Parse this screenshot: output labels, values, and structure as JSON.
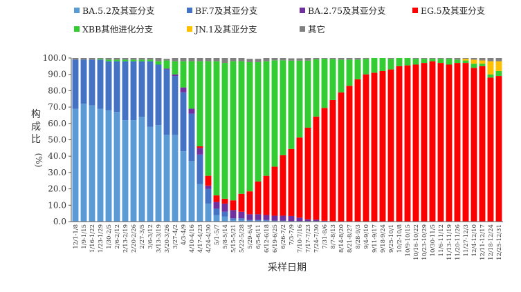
{
  "chart_data": {
    "type": "bar",
    "stacked": true,
    "xlabel": "采样日期",
    "ylabel_chars": [
      "构",
      "成",
      "比"
    ],
    "ylabel_unit": "(%)",
    "ylim": [
      0,
      100
    ],
    "yticks": [
      "0.0",
      "10.0",
      "20.0",
      "30.0",
      "40.0",
      "50.0",
      "60.0",
      "70.0",
      "80.0",
      "90.0",
      "100.0"
    ],
    "legend_placement": "top",
    "grid": false,
    "categories": [
      "12/1-1/8",
      "1/9-1/15",
      "1/16-1/22",
      "1/23-1/29",
      "1/30-2/5",
      "2/6-2/12",
      "2/13-2/19",
      "2/20-2/26",
      "2/27-3/5",
      "3/6-3/12",
      "3/13-3/19",
      "3/20-3/26",
      "3/27-4/2",
      "4/3-4/9",
      "4/10-4/16",
      "4/17-4/23",
      "4/24-4/30",
      "5/1-5/7",
      "5/8-5/14",
      "5/15-5/21",
      "5/22-5/28",
      "5/29-6/4",
      "6/5-6/11",
      "6/12-6/18",
      "6/19-6/25",
      "6/26-7/2",
      "7/3-7/9",
      "7/10-7/16",
      "7/17-7/23",
      "7/24-7/30",
      "7/31-8/6",
      "8/7-8/13",
      "8/14-8/20",
      "8/21-8/27",
      "8/28-9/3",
      "9/4-9/10",
      "9/11-9/17",
      "9/18-9/24",
      "9/25-10/1",
      "10/2-10/8",
      "10/9-10/15",
      "10/16-10/22",
      "10/23-10/29",
      "10/30-11/5",
      "11/6-11/12",
      "11/13-11/19",
      "11/20-11/26",
      "11/27-12/3",
      "12/4-12/10",
      "12/11-12/17",
      "12/18-12/24",
      "12/25-12/31"
    ],
    "series": [
      {
        "name": "BA.5.2及其亚分支",
        "color": "#5B9BD5",
        "values": [
          69,
          72,
          71,
          69,
          68,
          67,
          62,
          62,
          64,
          58,
          59,
          53,
          53,
          43,
          37,
          23,
          11,
          4,
          3,
          1,
          1,
          0.5,
          0.5,
          0.5,
          0.3,
          0.3,
          0.2,
          0.2,
          0.2,
          0.2,
          0,
          0,
          0,
          0,
          0,
          0,
          0,
          0,
          0,
          0,
          0,
          0,
          0,
          0,
          0,
          0,
          0,
          0,
          0,
          0,
          0,
          0
        ]
      },
      {
        "name": "BF.7及其亚分支",
        "color": "#4472C4",
        "values": [
          30,
          27,
          28,
          30,
          30,
          31,
          36,
          36,
          34,
          40,
          37,
          40,
          36,
          36,
          29,
          18,
          9,
          4,
          3,
          1,
          1,
          0.5,
          0.5,
          0.5,
          0.3,
          0.3,
          0.2,
          0.2,
          0.2,
          0.2,
          0,
          0,
          0,
          0,
          0,
          0,
          0,
          0,
          0,
          0,
          0,
          0,
          0,
          0,
          0,
          0,
          0,
          0,
          0,
          0,
          0,
          0
        ]
      },
      {
        "name": "BA.2.75及其亚分支",
        "color": "#7030A0",
        "values": [
          0,
          0,
          0,
          0,
          0,
          0,
          0,
          0,
          0,
          0,
          0,
          0.5,
          1,
          3,
          3,
          4,
          2,
          4,
          5,
          5,
          4,
          3.5,
          3.5,
          3,
          3,
          3,
          3,
          2,
          1,
          0.8,
          0.5,
          0.3,
          0,
          0,
          0,
          0,
          0,
          0,
          0,
          0,
          0,
          0,
          0,
          0,
          0,
          0,
          0,
          0,
          0,
          0,
          0,
          0
        ]
      },
      {
        "name": "EG.5及其亚分支",
        "color": "#FF0000",
        "values": [
          0,
          0,
          0,
          0,
          0,
          0,
          0,
          0,
          0,
          0,
          0,
          0,
          0,
          0,
          0,
          1,
          6,
          4,
          3,
          6,
          11,
          14,
          20,
          24,
          30,
          37,
          41,
          49,
          56,
          63,
          69,
          74,
          79,
          83,
          87,
          90,
          91,
          92,
          93,
          95,
          95.5,
          96,
          97,
          98,
          97,
          96,
          97,
          97,
          94,
          95,
          88,
          89
        ]
      },
      {
        "name": "XBB其他进化分支",
        "color": "#33CC33",
        "values": [
          0,
          0,
          0,
          0.5,
          1,
          1,
          1,
          1,
          1,
          1,
          2,
          5,
          8,
          16,
          29,
          52,
          70,
          82,
          83,
          85,
          81,
          79,
          73,
          70,
          65,
          58,
          54,
          47,
          41,
          35,
          30,
          25,
          20,
          16,
          12,
          9.5,
          9,
          8,
          6.5,
          5,
          4.5,
          3.5,
          2.5,
          1.5,
          2.5,
          3.5,
          2,
          1.5,
          2.5,
          1.5,
          2,
          3
        ]
      },
      {
        "name": "JN.1及其亚分支",
        "color": "#FFC000",
        "values": [
          0,
          0,
          0,
          0,
          0,
          0,
          0,
          0,
          0,
          0,
          0,
          0,
          0,
          0,
          0,
          0,
          0,
          0,
          0,
          0,
          0,
          0,
          0,
          0,
          0,
          0,
          0,
          0,
          0,
          0,
          0,
          0,
          0,
          0,
          0,
          0,
          0,
          0,
          0,
          0,
          0,
          0,
          0,
          0,
          0,
          0,
          0,
          1,
          2.5,
          2,
          8,
          6
        ]
      },
      {
        "name": "其它",
        "color": "#808080",
        "values": [
          1,
          1,
          1,
          0.5,
          1,
          1,
          1,
          1,
          1,
          1,
          2,
          1,
          2,
          2,
          2,
          2,
          2,
          2,
          3,
          3,
          3,
          2,
          2,
          2,
          1.4,
          1.4,
          1.4,
          1.4,
          1.6,
          0.8,
          0.5,
          0.7,
          1,
          1,
          1,
          0.5,
          0,
          0,
          0.5,
          0,
          0,
          0.5,
          0.5,
          0.5,
          0.5,
          0.5,
          1,
          0.5,
          1,
          1.5,
          2,
          2
        ]
      }
    ]
  }
}
